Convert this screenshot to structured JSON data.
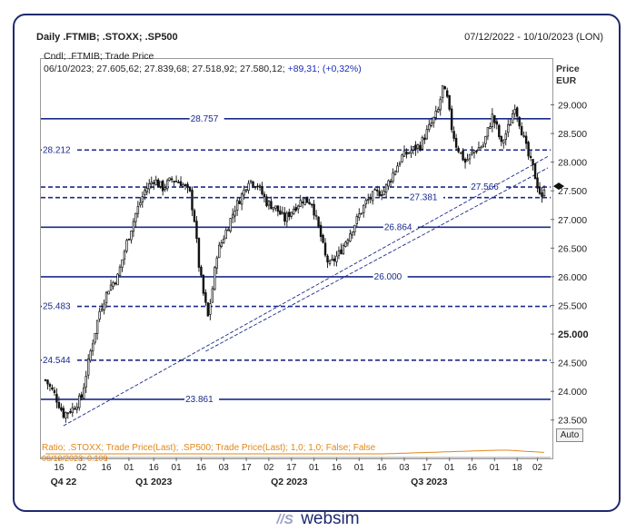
{
  "header": {
    "title": "Daily .FTMIB; .STOXX; .SP500",
    "range": "07/12/2022 - 10/10/2023 (LON)"
  },
  "info": {
    "line1": "Cndl; .FTMIB; Trade Price",
    "line2_values": "06/10/2023; 27.605,62; 27.839,68; 27.518,92; 27.580,12;",
    "line2_change": "+89,31; (+0,32%)",
    "hidden_value": "28.757"
  },
  "price_axis": {
    "title": "Price",
    "unit": "EUR"
  },
  "ratio_legend": "Ratio; .STOXX; Trade Price(Last); .SP500; Trade Price(Last);  1,0; 1,0; False; False",
  "ratio_value": "06/10/2023; 0,109",
  "auto_label": "Auto",
  "logo": "websim",
  "colors": {
    "candle": "#111111",
    "line": "#1a2a8a",
    "ratio": "#e0871a",
    "frame": "#1f2a6e"
  },
  "chart_data": {
    "type": "candlestick",
    "ylim": [
      23100,
      29800
    ],
    "yticks": [
      {
        "v": 29000,
        "label": "29.000"
      },
      {
        "v": 28500,
        "label": "28.500"
      },
      {
        "v": 28000,
        "label": "28.000"
      },
      {
        "v": 27500,
        "label": "27.500"
      },
      {
        "v": 27000,
        "label": "27.000"
      },
      {
        "v": 26500,
        "label": "26.500"
      },
      {
        "v": 26000,
        "label": "26.000"
      },
      {
        "v": 25500,
        "label": "25.500"
      },
      {
        "v": 25000,
        "label": "25.000"
      },
      {
        "v": 24500,
        "label": "24.500"
      },
      {
        "v": 24000,
        "label": "24.000"
      },
      {
        "v": 23500,
        "label": "23.500"
      }
    ],
    "xticks": [
      {
        "i": 6,
        "label": "16"
      },
      {
        "i": 16,
        "label": "02"
      },
      {
        "i": 27,
        "label": "16"
      },
      {
        "i": 37,
        "label": "01"
      },
      {
        "i": 48,
        "label": "16"
      },
      {
        "i": 58,
        "label": "01"
      },
      {
        "i": 69,
        "label": "16"
      },
      {
        "i": 79,
        "label": "03"
      },
      {
        "i": 89,
        "label": "17"
      },
      {
        "i": 99,
        "label": "02"
      },
      {
        "i": 109,
        "label": "17"
      },
      {
        "i": 119,
        "label": "01"
      },
      {
        "i": 129,
        "label": "16"
      },
      {
        "i": 139,
        "label": "01"
      },
      {
        "i": 149,
        "label": "16"
      },
      {
        "i": 159,
        "label": "03"
      },
      {
        "i": 169,
        "label": "17"
      },
      {
        "i": 179,
        "label": "01"
      },
      {
        "i": 189,
        "label": "16"
      },
      {
        "i": 199,
        "label": "01"
      },
      {
        "i": 209,
        "label": "18"
      },
      {
        "i": 218,
        "label": "02"
      }
    ],
    "period_labels": [
      {
        "i": 8,
        "label": "Q4 22"
      },
      {
        "i": 48,
        "label": "Q1 2023"
      },
      {
        "i": 108,
        "label": "Q2 2023"
      },
      {
        "i": 170,
        "label": "Q3 2023"
      }
    ],
    "n_candles": 222,
    "anchors": [
      [
        0,
        24200
      ],
      [
        4,
        23950
      ],
      [
        8,
        23600
      ],
      [
        12,
        23700
      ],
      [
        16,
        23900
      ],
      [
        20,
        24700
      ],
      [
        24,
        25400
      ],
      [
        28,
        25800
      ],
      [
        32,
        26000
      ],
      [
        36,
        26600
      ],
      [
        40,
        27100
      ],
      [
        44,
        27500
      ],
      [
        48,
        27700
      ],
      [
        52,
        27550
      ],
      [
        56,
        27700
      ],
      [
        60,
        27650
      ],
      [
        64,
        27450
      ],
      [
        66,
        27000
      ],
      [
        68,
        26200
      ],
      [
        70,
        25700
      ],
      [
        72,
        25300
      ],
      [
        74,
        25800
      ],
      [
        76,
        26400
      ],
      [
        80,
        26800
      ],
      [
        84,
        27200
      ],
      [
        88,
        27500
      ],
      [
        90,
        27700
      ],
      [
        94,
        27600
      ],
      [
        98,
        27300
      ],
      [
        102,
        27200
      ],
      [
        106,
        27000
      ],
      [
        110,
        27200
      ],
      [
        114,
        27350
      ],
      [
        118,
        27300
      ],
      [
        120,
        27000
      ],
      [
        122,
        26700
      ],
      [
        124,
        26350
      ],
      [
        126,
        26200
      ],
      [
        130,
        26400
      ],
      [
        134,
        26700
      ],
      [
        138,
        27000
      ],
      [
        142,
        27300
      ],
      [
        146,
        27450
      ],
      [
        150,
        27500
      ],
      [
        154,
        27800
      ],
      [
        158,
        28100
      ],
      [
        162,
        28200
      ],
      [
        166,
        28300
      ],
      [
        170,
        28600
      ],
      [
        174,
        28900
      ],
      [
        176,
        29300
      ],
      [
        178,
        29100
      ],
      [
        180,
        28600
      ],
      [
        182,
        28300
      ],
      [
        186,
        28000
      ],
      [
        190,
        28200
      ],
      [
        194,
        28300
      ],
      [
        198,
        28800
      ],
      [
        200,
        28600
      ],
      [
        202,
        28300
      ],
      [
        206,
        28700
      ],
      [
        208,
        29000
      ],
      [
        210,
        28700
      ],
      [
        212,
        28400
      ],
      [
        214,
        28100
      ],
      [
        216,
        27900
      ],
      [
        218,
        27600
      ],
      [
        220,
        27350
      ],
      [
        221,
        27580
      ]
    ],
    "hlines": [
      {
        "v": 28757,
        "label": "28.757",
        "style": "solid",
        "lx": 0.29
      },
      {
        "v": 28212,
        "label": "28.212",
        "style": "dashed",
        "lx": 0.0
      },
      {
        "v": 27566,
        "label": "27.566",
        "style": "dashed",
        "lx": 0.84
      },
      {
        "v": 27381,
        "label": "27.381",
        "style": "dashed",
        "lx": 0.72
      },
      {
        "v": 26864,
        "label": "26.864",
        "style": "solid",
        "lx": 0.67
      },
      {
        "v": 26000,
        "label": "26.000",
        "style": "solid",
        "lx": 0.65
      },
      {
        "v": 25483,
        "label": "25.483",
        "style": "dashed",
        "lx": 0.0
      },
      {
        "v": 24544,
        "label": "24.544",
        "style": "dashed",
        "lx": 0.0
      },
      {
        "v": 23861,
        "label": "23.861",
        "style": "solid",
        "lx": 0.28
      }
    ],
    "trendlines": [
      {
        "from": [
          8,
          23400
        ],
        "to": [
          221,
          28100
        ]
      },
      {
        "from": [
          71,
          24700
        ],
        "to": [
          221,
          27900
        ]
      }
    ],
    "last_price": 27580
  }
}
